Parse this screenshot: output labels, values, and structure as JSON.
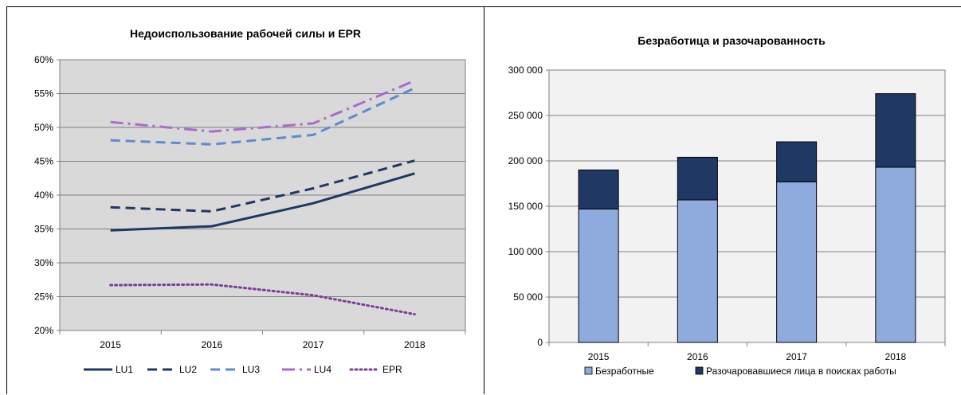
{
  "chart_data": [
    {
      "type": "line",
      "title": "Недоиспользование рабочей силы и EPR",
      "categories": [
        "2015",
        "2016",
        "2017",
        "2018"
      ],
      "ylim": [
        20,
        60
      ],
      "yticks": [
        "20%",
        "25%",
        "30%",
        "35%",
        "40%",
        "45%",
        "50%",
        "55%",
        "60%"
      ],
      "grid": true,
      "legend_position": "bottom",
      "series": [
        {
          "name": "LU1",
          "values": [
            34.8,
            35.4,
            38.8,
            43.2
          ],
          "color": "#1f3864",
          "dash": "solid"
        },
        {
          "name": "LU2",
          "values": [
            38.2,
            37.6,
            41.0,
            45.1
          ],
          "color": "#1f3864",
          "dash": "dash"
        },
        {
          "name": "LU3",
          "values": [
            48.1,
            47.5,
            48.9,
            55.8
          ],
          "color": "#5b8bd0",
          "dash": "dash"
        },
        {
          "name": "LU4",
          "values": [
            50.8,
            49.4,
            50.6,
            56.9
          ],
          "color": "#a86cd0",
          "dash": "dashdot"
        },
        {
          "name": "EPR",
          "values": [
            26.7,
            26.8,
            25.2,
            22.4
          ],
          "color": "#7d3c98",
          "dash": "dot"
        }
      ]
    },
    {
      "type": "bar",
      "stacked": true,
      "title": "Безработица и разочарованность",
      "categories": [
        "2015",
        "2016",
        "2017",
        "2018"
      ],
      "ylim": [
        0,
        300000
      ],
      "yticks": [
        "0",
        "50 000",
        "100 000",
        "150 000",
        "200 000",
        "250 000",
        "300 000"
      ],
      "grid": true,
      "legend_position": "bottom",
      "series": [
        {
          "name": "Безработные",
          "values": [
            147000,
            157000,
            177000,
            193000
          ],
          "color": "#8faadc"
        },
        {
          "name": "Разочаровавшиеся лица в поисках работы",
          "values": [
            43000,
            47000,
            44000,
            81000
          ],
          "color": "#1f3864"
        }
      ]
    }
  ]
}
